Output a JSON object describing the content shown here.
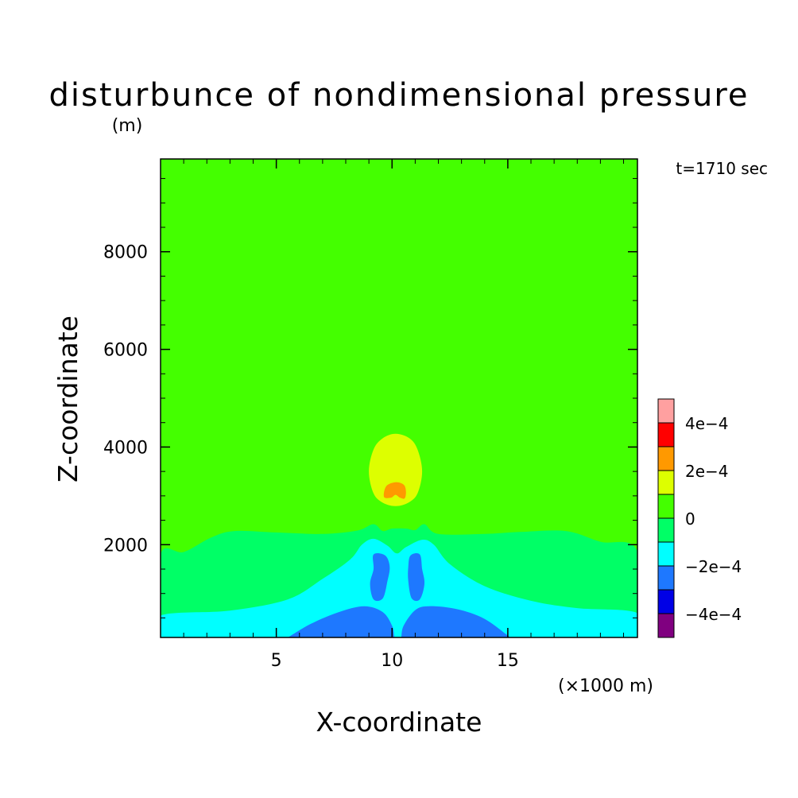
{
  "chart_data": {
    "type": "heatmap",
    "subtype": "filled-contour",
    "title": "disturbunce of nondimensional pressure",
    "units": "(m)",
    "time_label": "t=1710 sec",
    "xlabel": "X-coordinate",
    "ylabel": "Z-coordinate",
    "x_unit_note": "(×1000 m)",
    "xlim": [
      0,
      20.6
    ],
    "ylim": [
      100,
      9900
    ],
    "x_ticks": [
      {
        "value": 5,
        "label": "5"
      },
      {
        "value": 10,
        "label": "10"
      },
      {
        "value": 15,
        "label": "15"
      }
    ],
    "y_ticks": [
      {
        "value": 2000,
        "label": "2000"
      },
      {
        "value": 4000,
        "label": "4000"
      },
      {
        "value": 6000,
        "label": "6000"
      },
      {
        "value": 8000,
        "label": "8000"
      }
    ],
    "colorbar": {
      "levels": [
        -0.0005,
        -0.0004,
        -0.0003,
        -0.0002,
        -0.0001,
        0,
        0.0001,
        0.0002,
        0.0003,
        0.0004,
        0.0005
      ],
      "colors": [
        "#800080",
        "#0000e6",
        "#1e78ff",
        "#00ffff",
        "#00ff66",
        "#44ff00",
        "#ddff00",
        "#ff9900",
        "#ff0000",
        "#ffa0a0"
      ],
      "labels": [
        {
          "value": -0.0004,
          "label": "−4e−4"
        },
        {
          "value": -0.0002,
          "label": "−2e−4"
        },
        {
          "value": 0,
          "label": "0"
        },
        {
          "value": 0.0002,
          "label": "2e−4"
        },
        {
          "value": 0.0004,
          "label": "4e−4"
        }
      ]
    },
    "regions": [
      {
        "name": "background",
        "band": [
          0,
          0.0001
        ],
        "color": "#44ff00",
        "points": [
          [
            0,
            100
          ],
          [
            20.6,
            100
          ],
          [
            20.6,
            9900
          ],
          [
            0,
            9900
          ]
        ]
      },
      {
        "name": "near-zero-negative layer",
        "band": [
          -0.0001,
          0
        ],
        "color": "#00ff66",
        "points": [
          [
            0,
            100
          ],
          [
            0,
            1800
          ],
          [
            1,
            1850
          ],
          [
            2.2,
            2150
          ],
          [
            3.2,
            2280
          ],
          [
            5,
            2250
          ],
          [
            7,
            2220
          ],
          [
            8.5,
            2290
          ],
          [
            9.2,
            2420
          ],
          [
            9.6,
            2280
          ],
          [
            10,
            2330
          ],
          [
            10.6,
            2330
          ],
          [
            11,
            2300
          ],
          [
            11.4,
            2420
          ],
          [
            12,
            2220
          ],
          [
            14,
            2220
          ],
          [
            15.5,
            2260
          ],
          [
            17.5,
            2280
          ],
          [
            19,
            2060
          ],
          [
            20.6,
            1860
          ],
          [
            20.6,
            100
          ]
        ]
      },
      {
        "name": "low-level negative layer",
        "band": [
          -0.0002,
          -0.0001
        ],
        "color": "#00ffff",
        "points": [
          [
            0,
            100
          ],
          [
            0,
            550
          ],
          [
            3,
            650
          ],
          [
            5.5,
            880
          ],
          [
            7,
            1300
          ],
          [
            8.2,
            1700
          ],
          [
            8.7,
            2000
          ],
          [
            9.2,
            2120
          ],
          [
            9.8,
            1980
          ],
          [
            10.2,
            1820
          ],
          [
            10.6,
            1950
          ],
          [
            11.3,
            2100
          ],
          [
            11.8,
            2000
          ],
          [
            12.5,
            1600
          ],
          [
            14,
            1150
          ],
          [
            16,
            850
          ],
          [
            18,
            700
          ],
          [
            20.6,
            600
          ],
          [
            20.6,
            100
          ]
        ]
      },
      {
        "name": "negative core left",
        "band": [
          -0.0003,
          -0.0002
        ],
        "color": "#1e78ff",
        "points": [
          [
            9.2,
            1800
          ],
          [
            9.7,
            1780
          ],
          [
            9.9,
            1550
          ],
          [
            9.8,
            1250
          ],
          [
            9.6,
            900
          ],
          [
            9.2,
            880
          ],
          [
            9.05,
            1200
          ],
          [
            9.2,
            1500
          ]
        ]
      },
      {
        "name": "negative core right",
        "band": [
          -0.0003,
          -0.0002
        ],
        "color": "#1e78ff",
        "points": [
          [
            11.2,
            1800
          ],
          [
            10.8,
            1780
          ],
          [
            10.7,
            1550
          ],
          [
            10.7,
            1250
          ],
          [
            10.85,
            900
          ],
          [
            11.2,
            880
          ],
          [
            11.4,
            1200
          ],
          [
            11.3,
            1500
          ]
        ]
      },
      {
        "name": "negative surface left",
        "band": [
          -0.0003,
          -0.0002
        ],
        "color": "#1e78ff",
        "points": [
          [
            5.5,
            100
          ],
          [
            6.5,
            380
          ],
          [
            7.7,
            620
          ],
          [
            8.8,
            740
          ],
          [
            9.6,
            620
          ],
          [
            10,
            340
          ],
          [
            10.1,
            100
          ]
        ]
      },
      {
        "name": "negative surface right",
        "band": [
          -0.0003,
          -0.0002
        ],
        "color": "#1e78ff",
        "points": [
          [
            10.4,
            100
          ],
          [
            10.5,
            340
          ],
          [
            11,
            660
          ],
          [
            11.6,
            740
          ],
          [
            12.8,
            680
          ],
          [
            14,
            480
          ],
          [
            15.1,
            100
          ]
        ]
      },
      {
        "name": "positive bubble",
        "band": [
          0.0001,
          0.0002
        ],
        "color": "#ddff00",
        "points": [
          [
            10.15,
            4270
          ],
          [
            10.75,
            4180
          ],
          [
            11.1,
            3950
          ],
          [
            11.3,
            3500
          ],
          [
            11.1,
            3050
          ],
          [
            10.7,
            2860
          ],
          [
            10.15,
            2790
          ],
          [
            9.6,
            2860
          ],
          [
            9.2,
            3050
          ],
          [
            9,
            3500
          ],
          [
            9.2,
            3950
          ],
          [
            9.6,
            4180
          ]
        ]
      },
      {
        "name": "positive core",
        "band": [
          0.0002,
          0.0003
        ],
        "color": "#ff9900",
        "points": [
          [
            9.65,
            2980
          ],
          [
            9.75,
            3200
          ],
          [
            10.15,
            3280
          ],
          [
            10.5,
            3230
          ],
          [
            10.6,
            3100
          ],
          [
            10.55,
            2950
          ],
          [
            10.35,
            2960
          ],
          [
            10.15,
            3020
          ],
          [
            9.95,
            2960
          ]
        ]
      }
    ]
  }
}
